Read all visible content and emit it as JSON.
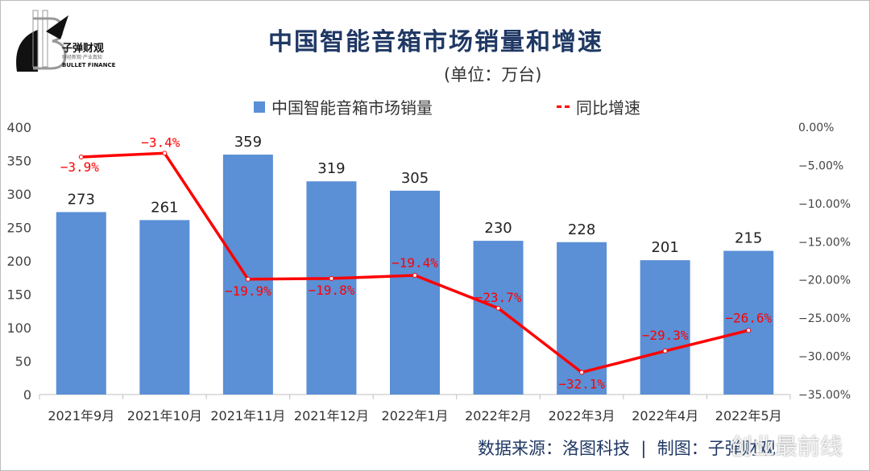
{
  "logo": {
    "name": "子弹财观",
    "slogan": "财经新观·产业真知",
    "en": "BULLET FINANCE"
  },
  "header": {
    "title": "中国智能音箱市场销量和增速",
    "unit": "(单位：万台)"
  },
  "footer": {
    "text": "数据来源：洛图科技  |  制图：子弹财观",
    "watermark": "创业最前线"
  },
  "colors": {
    "bar": "#5b8fd6",
    "line": "#ff0000",
    "title": "#1f3864"
  },
  "chart_data": {
    "type": "bar+line",
    "title": "中国智能音箱市场销量和增速",
    "categories": [
      "2021年9月",
      "2021年10月",
      "2021年11月",
      "2021年12月",
      "2022年1月",
      "2022年2月",
      "2022年3月",
      "2022年4月",
      "2022年5月"
    ],
    "series": [
      {
        "name": "中国智能音箱市场销量",
        "type": "bar",
        "axis": "left",
        "values": [
          273,
          261,
          359,
          319,
          305,
          230,
          228,
          201,
          215
        ],
        "labels": [
          "273",
          "261",
          "359",
          "319",
          "305",
          "230",
          "228",
          "201",
          "215"
        ]
      },
      {
        "name": "同比增速",
        "type": "line",
        "axis": "right",
        "values": [
          -3.9,
          -3.4,
          -19.9,
          -19.8,
          -19.4,
          -23.7,
          -32.1,
          -29.3,
          -26.6
        ],
        "labels": [
          "-3.9%",
          "-3.4%",
          "-19.9%",
          "-19.8%",
          "-19.4%",
          "-23.7%",
          "-32.1%",
          "-29.3%",
          "-26.6%"
        ]
      }
    ],
    "y_left": {
      "range": [
        0,
        400
      ],
      "ticks": [
        "0",
        "50",
        "100",
        "150",
        "200",
        "250",
        "300",
        "350",
        "400"
      ]
    },
    "y_right": {
      "range": [
        -35,
        0
      ],
      "ticks": [
        "-35.00%",
        "-30.00%",
        "-25.00%",
        "-20.00%",
        "-15.00%",
        "-10.00%",
        "-5.00%",
        "0.00%"
      ]
    },
    "legend": "top",
    "grid": false
  }
}
